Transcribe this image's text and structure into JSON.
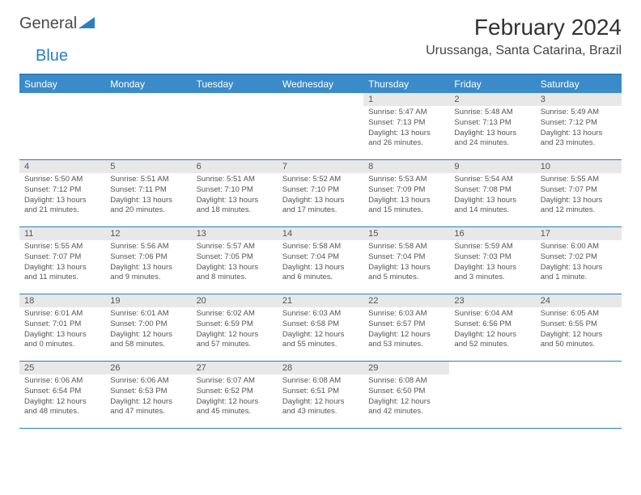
{
  "brand": {
    "general": "General",
    "blue": "Blue"
  },
  "title": "February 2024",
  "location": "Urussanga, Santa Catarina, Brazil",
  "colors": {
    "header_bg": "#3b8bc9",
    "border": "#2a7fbf",
    "daynum_bg": "#e8e8e8",
    "text": "#555555"
  },
  "weekdays": [
    "Sunday",
    "Monday",
    "Tuesday",
    "Wednesday",
    "Thursday",
    "Friday",
    "Saturday"
  ],
  "weeks": [
    [
      null,
      null,
      null,
      null,
      {
        "n": "1",
        "sr": "Sunrise: 5:47 AM",
        "ss": "Sunset: 7:13 PM",
        "d1": "Daylight: 13 hours",
        "d2": "and 26 minutes."
      },
      {
        "n": "2",
        "sr": "Sunrise: 5:48 AM",
        "ss": "Sunset: 7:13 PM",
        "d1": "Daylight: 13 hours",
        "d2": "and 24 minutes."
      },
      {
        "n": "3",
        "sr": "Sunrise: 5:49 AM",
        "ss": "Sunset: 7:12 PM",
        "d1": "Daylight: 13 hours",
        "d2": "and 23 minutes."
      }
    ],
    [
      {
        "n": "4",
        "sr": "Sunrise: 5:50 AM",
        "ss": "Sunset: 7:12 PM",
        "d1": "Daylight: 13 hours",
        "d2": "and 21 minutes."
      },
      {
        "n": "5",
        "sr": "Sunrise: 5:51 AM",
        "ss": "Sunset: 7:11 PM",
        "d1": "Daylight: 13 hours",
        "d2": "and 20 minutes."
      },
      {
        "n": "6",
        "sr": "Sunrise: 5:51 AM",
        "ss": "Sunset: 7:10 PM",
        "d1": "Daylight: 13 hours",
        "d2": "and 18 minutes."
      },
      {
        "n": "7",
        "sr": "Sunrise: 5:52 AM",
        "ss": "Sunset: 7:10 PM",
        "d1": "Daylight: 13 hours",
        "d2": "and 17 minutes."
      },
      {
        "n": "8",
        "sr": "Sunrise: 5:53 AM",
        "ss": "Sunset: 7:09 PM",
        "d1": "Daylight: 13 hours",
        "d2": "and 15 minutes."
      },
      {
        "n": "9",
        "sr": "Sunrise: 5:54 AM",
        "ss": "Sunset: 7:08 PM",
        "d1": "Daylight: 13 hours",
        "d2": "and 14 minutes."
      },
      {
        "n": "10",
        "sr": "Sunrise: 5:55 AM",
        "ss": "Sunset: 7:07 PM",
        "d1": "Daylight: 13 hours",
        "d2": "and 12 minutes."
      }
    ],
    [
      {
        "n": "11",
        "sr": "Sunrise: 5:55 AM",
        "ss": "Sunset: 7:07 PM",
        "d1": "Daylight: 13 hours",
        "d2": "and 11 minutes."
      },
      {
        "n": "12",
        "sr": "Sunrise: 5:56 AM",
        "ss": "Sunset: 7:06 PM",
        "d1": "Daylight: 13 hours",
        "d2": "and 9 minutes."
      },
      {
        "n": "13",
        "sr": "Sunrise: 5:57 AM",
        "ss": "Sunset: 7:05 PM",
        "d1": "Daylight: 13 hours",
        "d2": "and 8 minutes."
      },
      {
        "n": "14",
        "sr": "Sunrise: 5:58 AM",
        "ss": "Sunset: 7:04 PM",
        "d1": "Daylight: 13 hours",
        "d2": "and 6 minutes."
      },
      {
        "n": "15",
        "sr": "Sunrise: 5:58 AM",
        "ss": "Sunset: 7:04 PM",
        "d1": "Daylight: 13 hours",
        "d2": "and 5 minutes."
      },
      {
        "n": "16",
        "sr": "Sunrise: 5:59 AM",
        "ss": "Sunset: 7:03 PM",
        "d1": "Daylight: 13 hours",
        "d2": "and 3 minutes."
      },
      {
        "n": "17",
        "sr": "Sunrise: 6:00 AM",
        "ss": "Sunset: 7:02 PM",
        "d1": "Daylight: 13 hours",
        "d2": "and 1 minute."
      }
    ],
    [
      {
        "n": "18",
        "sr": "Sunrise: 6:01 AM",
        "ss": "Sunset: 7:01 PM",
        "d1": "Daylight: 13 hours",
        "d2": "and 0 minutes."
      },
      {
        "n": "19",
        "sr": "Sunrise: 6:01 AM",
        "ss": "Sunset: 7:00 PM",
        "d1": "Daylight: 12 hours",
        "d2": "and 58 minutes."
      },
      {
        "n": "20",
        "sr": "Sunrise: 6:02 AM",
        "ss": "Sunset: 6:59 PM",
        "d1": "Daylight: 12 hours",
        "d2": "and 57 minutes."
      },
      {
        "n": "21",
        "sr": "Sunrise: 6:03 AM",
        "ss": "Sunset: 6:58 PM",
        "d1": "Daylight: 12 hours",
        "d2": "and 55 minutes."
      },
      {
        "n": "22",
        "sr": "Sunrise: 6:03 AM",
        "ss": "Sunset: 6:57 PM",
        "d1": "Daylight: 12 hours",
        "d2": "and 53 minutes."
      },
      {
        "n": "23",
        "sr": "Sunrise: 6:04 AM",
        "ss": "Sunset: 6:56 PM",
        "d1": "Daylight: 12 hours",
        "d2": "and 52 minutes."
      },
      {
        "n": "24",
        "sr": "Sunrise: 6:05 AM",
        "ss": "Sunset: 6:55 PM",
        "d1": "Daylight: 12 hours",
        "d2": "and 50 minutes."
      }
    ],
    [
      {
        "n": "25",
        "sr": "Sunrise: 6:06 AM",
        "ss": "Sunset: 6:54 PM",
        "d1": "Daylight: 12 hours",
        "d2": "and 48 minutes."
      },
      {
        "n": "26",
        "sr": "Sunrise: 6:06 AM",
        "ss": "Sunset: 6:53 PM",
        "d1": "Daylight: 12 hours",
        "d2": "and 47 minutes."
      },
      {
        "n": "27",
        "sr": "Sunrise: 6:07 AM",
        "ss": "Sunset: 6:52 PM",
        "d1": "Daylight: 12 hours",
        "d2": "and 45 minutes."
      },
      {
        "n": "28",
        "sr": "Sunrise: 6:08 AM",
        "ss": "Sunset: 6:51 PM",
        "d1": "Daylight: 12 hours",
        "d2": "and 43 minutes."
      },
      {
        "n": "29",
        "sr": "Sunrise: 6:08 AM",
        "ss": "Sunset: 6:50 PM",
        "d1": "Daylight: 12 hours",
        "d2": "and 42 minutes."
      },
      null,
      null
    ]
  ]
}
